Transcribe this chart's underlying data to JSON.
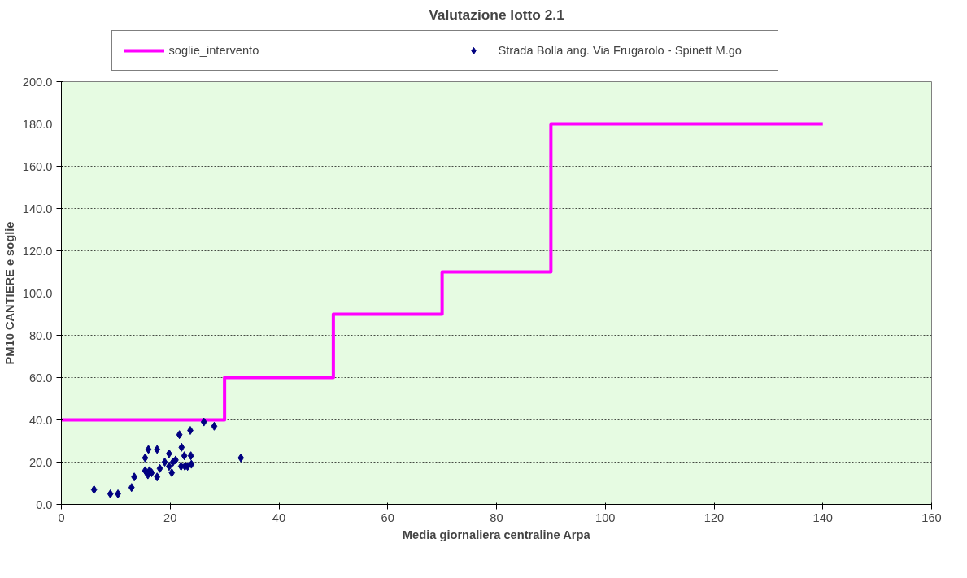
{
  "chart_data": {
    "type": "scatter",
    "title": "Valutazione lotto 2.1",
    "xlabel": "Media giornaliera centraline Arpa",
    "ylabel": "PM10 CANTIERE e soglie",
    "xlim": [
      0,
      160
    ],
    "xticks": [
      0,
      20,
      40,
      60,
      80,
      100,
      120,
      140,
      160
    ],
    "ylim": [
      0,
      200
    ],
    "yticks": [
      {
        "value": 0,
        "label": "0.0"
      },
      {
        "value": 20,
        "label": "20.0"
      },
      {
        "value": 40,
        "label": "40.0"
      },
      {
        "value": 60,
        "label": "60.0"
      },
      {
        "value": 80,
        "label": "80.0"
      },
      {
        "value": 100,
        "label": "100.0"
      },
      {
        "value": 120,
        "label": "120.0"
      },
      {
        "value": 140,
        "label": "140.0"
      },
      {
        "value": 160,
        "label": "160.0"
      },
      {
        "value": 180,
        "label": "180.0"
      },
      {
        "value": 200,
        "label": "200.0"
      }
    ],
    "grid": "y",
    "legend": "top",
    "series": [
      {
        "name": "soglie_intervento",
        "type": "step",
        "color": "#ff00ff",
        "x": [
          0,
          30,
          50,
          70,
          90,
          140
        ],
        "values": [
          40,
          60,
          90,
          110,
          180,
          180
        ]
      },
      {
        "name": "Strada Bolla ang. Via Frugarolo - Spinett M.go",
        "marker": "diamond",
        "color": "#000080",
        "x": [
          6,
          9,
          10.4,
          12.9,
          13.4,
          15.4,
          16,
          17.6,
          15.4,
          15.9,
          16.6,
          16.2,
          17.6,
          18.1,
          19,
          19.8,
          20.3,
          20.5,
          21,
          22.1,
          21.7,
          22,
          22.6,
          22.7,
          23.2,
          23.8,
          23.9,
          23.7,
          26.2,
          28.1,
          33,
          19.8
        ],
        "values": [
          7,
          5,
          5,
          8,
          13,
          22,
          26,
          26,
          16,
          14,
          15,
          16,
          13,
          17,
          20,
          24,
          15,
          20,
          21,
          27,
          33,
          18,
          23,
          18,
          18,
          23,
          19,
          35,
          39,
          37,
          22,
          18
        ]
      }
    ]
  }
}
